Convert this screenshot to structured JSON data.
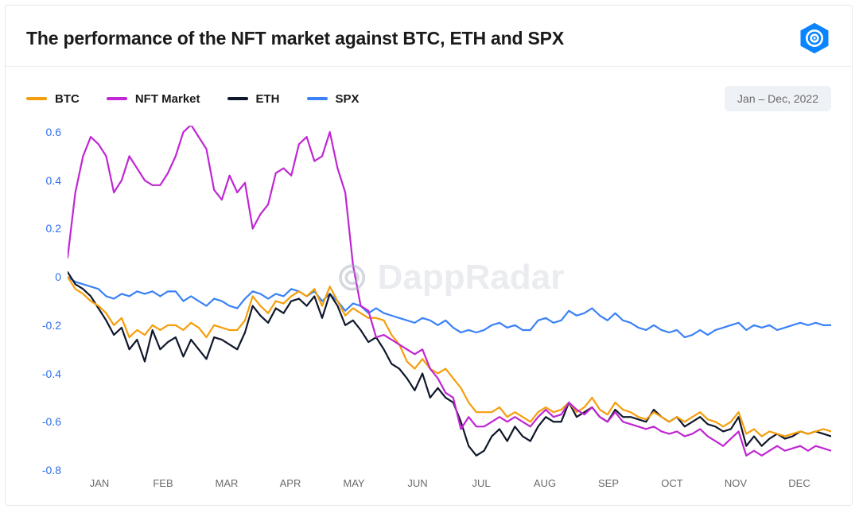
{
  "title": "The performance of the NFT market against BTC, ETH and SPX",
  "date_badge": "Jan – Dec, 2022",
  "watermark_text": "DappRadar",
  "logo_color": "#0a84ff",
  "colors": {
    "title": "#1a1a1a",
    "axis_y_label": "#2f6fed",
    "axis_x_label": "#6a6a6a",
    "border": "#e8e8ee",
    "badge_bg": "#eef1f5",
    "badge_text": "#6b6b6b",
    "watermark": "rgba(170,180,195,0.25)"
  },
  "chart": {
    "type": "line",
    "ylim": [
      -0.8,
      0.6
    ],
    "ytick_step": 0.2,
    "yticks": [
      0.6,
      0.4,
      0.2,
      0,
      -0.2,
      -0.4,
      -0.6,
      -0.8
    ],
    "x_labels": [
      "JAN",
      "FEB",
      "MAR",
      "APR",
      "MAY",
      "JUN",
      "JUL",
      "AUG",
      "SEP",
      "OCT",
      "NOV",
      "DEC"
    ],
    "line_width": 2.2,
    "legend": [
      {
        "key": "btc",
        "label": "BTC",
        "color": "#f59e0b"
      },
      {
        "key": "nft",
        "label": "NFT Market",
        "color": "#c026d3"
      },
      {
        "key": "eth",
        "label": "ETH",
        "color": "#0f172a"
      },
      {
        "key": "spx",
        "label": "SPX",
        "color": "#3b82f6"
      }
    ],
    "series": {
      "btc": [
        0.0,
        -0.05,
        -0.07,
        -0.1,
        -0.12,
        -0.15,
        -0.2,
        -0.17,
        -0.25,
        -0.22,
        -0.24,
        -0.2,
        -0.22,
        -0.2,
        -0.2,
        -0.22,
        -0.19,
        -0.21,
        -0.25,
        -0.2,
        -0.21,
        -0.22,
        -0.22,
        -0.18,
        -0.08,
        -0.12,
        -0.15,
        -0.1,
        -0.11,
        -0.08,
        -0.06,
        -0.08,
        -0.05,
        -0.12,
        -0.04,
        -0.1,
        -0.16,
        -0.13,
        -0.15,
        -0.17,
        -0.17,
        -0.18,
        -0.24,
        -0.28,
        -0.35,
        -0.38,
        -0.34,
        -0.38,
        -0.4,
        -0.38,
        -0.42,
        -0.46,
        -0.52,
        -0.56,
        -0.56,
        -0.56,
        -0.54,
        -0.58,
        -0.56,
        -0.58,
        -0.6,
        -0.56,
        -0.54,
        -0.56,
        -0.55,
        -0.52,
        -0.56,
        -0.54,
        -0.5,
        -0.55,
        -0.57,
        -0.52,
        -0.55,
        -0.56,
        -0.58,
        -0.59,
        -0.56,
        -0.58,
        -0.6,
        -0.58,
        -0.6,
        -0.58,
        -0.56,
        -0.59,
        -0.6,
        -0.62,
        -0.6,
        -0.56,
        -0.65,
        -0.63,
        -0.66,
        -0.64,
        -0.65,
        -0.66,
        -0.65,
        -0.64,
        -0.65,
        -0.64,
        -0.63,
        -0.64
      ],
      "nft": [
        0.08,
        0.35,
        0.5,
        0.58,
        0.55,
        0.5,
        0.35,
        0.4,
        0.5,
        0.45,
        0.4,
        0.38,
        0.38,
        0.43,
        0.5,
        0.6,
        0.63,
        0.58,
        0.53,
        0.36,
        0.32,
        0.42,
        0.35,
        0.39,
        0.2,
        0.26,
        0.3,
        0.43,
        0.45,
        0.42,
        0.55,
        0.58,
        0.48,
        0.5,
        0.6,
        0.45,
        0.35,
        0.05,
        -0.12,
        -0.14,
        -0.25,
        -0.24,
        -0.26,
        -0.28,
        -0.3,
        -0.32,
        -0.3,
        -0.38,
        -0.42,
        -0.48,
        -0.5,
        -0.63,
        -0.58,
        -0.62,
        -0.62,
        -0.6,
        -0.58,
        -0.6,
        -0.58,
        -0.6,
        -0.62,
        -0.58,
        -0.55,
        -0.58,
        -0.57,
        -0.52,
        -0.55,
        -0.57,
        -0.54,
        -0.58,
        -0.6,
        -0.56,
        -0.6,
        -0.61,
        -0.62,
        -0.63,
        -0.62,
        -0.64,
        -0.65,
        -0.64,
        -0.66,
        -0.65,
        -0.63,
        -0.66,
        -0.68,
        -0.7,
        -0.67,
        -0.64,
        -0.74,
        -0.72,
        -0.74,
        -0.72,
        -0.7,
        -0.72,
        -0.71,
        -0.7,
        -0.72,
        -0.7,
        -0.71,
        -0.72
      ],
      "eth": [
        0.02,
        -0.03,
        -0.05,
        -0.08,
        -0.13,
        -0.18,
        -0.24,
        -0.21,
        -0.3,
        -0.26,
        -0.35,
        -0.22,
        -0.3,
        -0.27,
        -0.25,
        -0.33,
        -0.26,
        -0.3,
        -0.34,
        -0.25,
        -0.26,
        -0.28,
        -0.3,
        -0.23,
        -0.12,
        -0.16,
        -0.19,
        -0.13,
        -0.15,
        -0.1,
        -0.09,
        -0.12,
        -0.08,
        -0.17,
        -0.07,
        -0.12,
        -0.2,
        -0.18,
        -0.22,
        -0.27,
        -0.25,
        -0.3,
        -0.36,
        -0.38,
        -0.42,
        -0.47,
        -0.4,
        -0.5,
        -0.46,
        -0.5,
        -0.52,
        -0.6,
        -0.7,
        -0.74,
        -0.72,
        -0.66,
        -0.63,
        -0.68,
        -0.62,
        -0.66,
        -0.68,
        -0.62,
        -0.58,
        -0.6,
        -0.6,
        -0.52,
        -0.58,
        -0.56,
        -0.54,
        -0.58,
        -0.6,
        -0.55,
        -0.58,
        -0.58,
        -0.59,
        -0.6,
        -0.55,
        -0.58,
        -0.6,
        -0.58,
        -0.62,
        -0.6,
        -0.58,
        -0.61,
        -0.62,
        -0.64,
        -0.63,
        -0.58,
        -0.7,
        -0.66,
        -0.7,
        -0.67,
        -0.65,
        -0.67,
        -0.66,
        -0.64,
        -0.65,
        -0.64,
        -0.65,
        -0.66
      ],
      "spx": [
        0.0,
        -0.02,
        -0.03,
        -0.04,
        -0.05,
        -0.08,
        -0.09,
        -0.07,
        -0.08,
        -0.06,
        -0.07,
        -0.06,
        -0.08,
        -0.06,
        -0.06,
        -0.1,
        -0.08,
        -0.1,
        -0.12,
        -0.09,
        -0.1,
        -0.12,
        -0.13,
        -0.09,
        -0.06,
        -0.07,
        -0.09,
        -0.07,
        -0.08,
        -0.05,
        -0.06,
        -0.08,
        -0.06,
        -0.1,
        -0.07,
        -0.1,
        -0.14,
        -0.11,
        -0.12,
        -0.15,
        -0.13,
        -0.15,
        -0.16,
        -0.17,
        -0.18,
        -0.19,
        -0.17,
        -0.18,
        -0.2,
        -0.18,
        -0.21,
        -0.23,
        -0.22,
        -0.23,
        -0.22,
        -0.2,
        -0.19,
        -0.21,
        -0.2,
        -0.22,
        -0.22,
        -0.18,
        -0.17,
        -0.19,
        -0.18,
        -0.14,
        -0.16,
        -0.15,
        -0.13,
        -0.16,
        -0.18,
        -0.15,
        -0.18,
        -0.19,
        -0.21,
        -0.22,
        -0.2,
        -0.22,
        -0.23,
        -0.22,
        -0.25,
        -0.24,
        -0.22,
        -0.24,
        -0.22,
        -0.21,
        -0.2,
        -0.19,
        -0.22,
        -0.2,
        -0.21,
        -0.2,
        -0.22,
        -0.21,
        -0.2,
        -0.19,
        -0.2,
        -0.19,
        -0.2,
        -0.2
      ]
    }
  }
}
